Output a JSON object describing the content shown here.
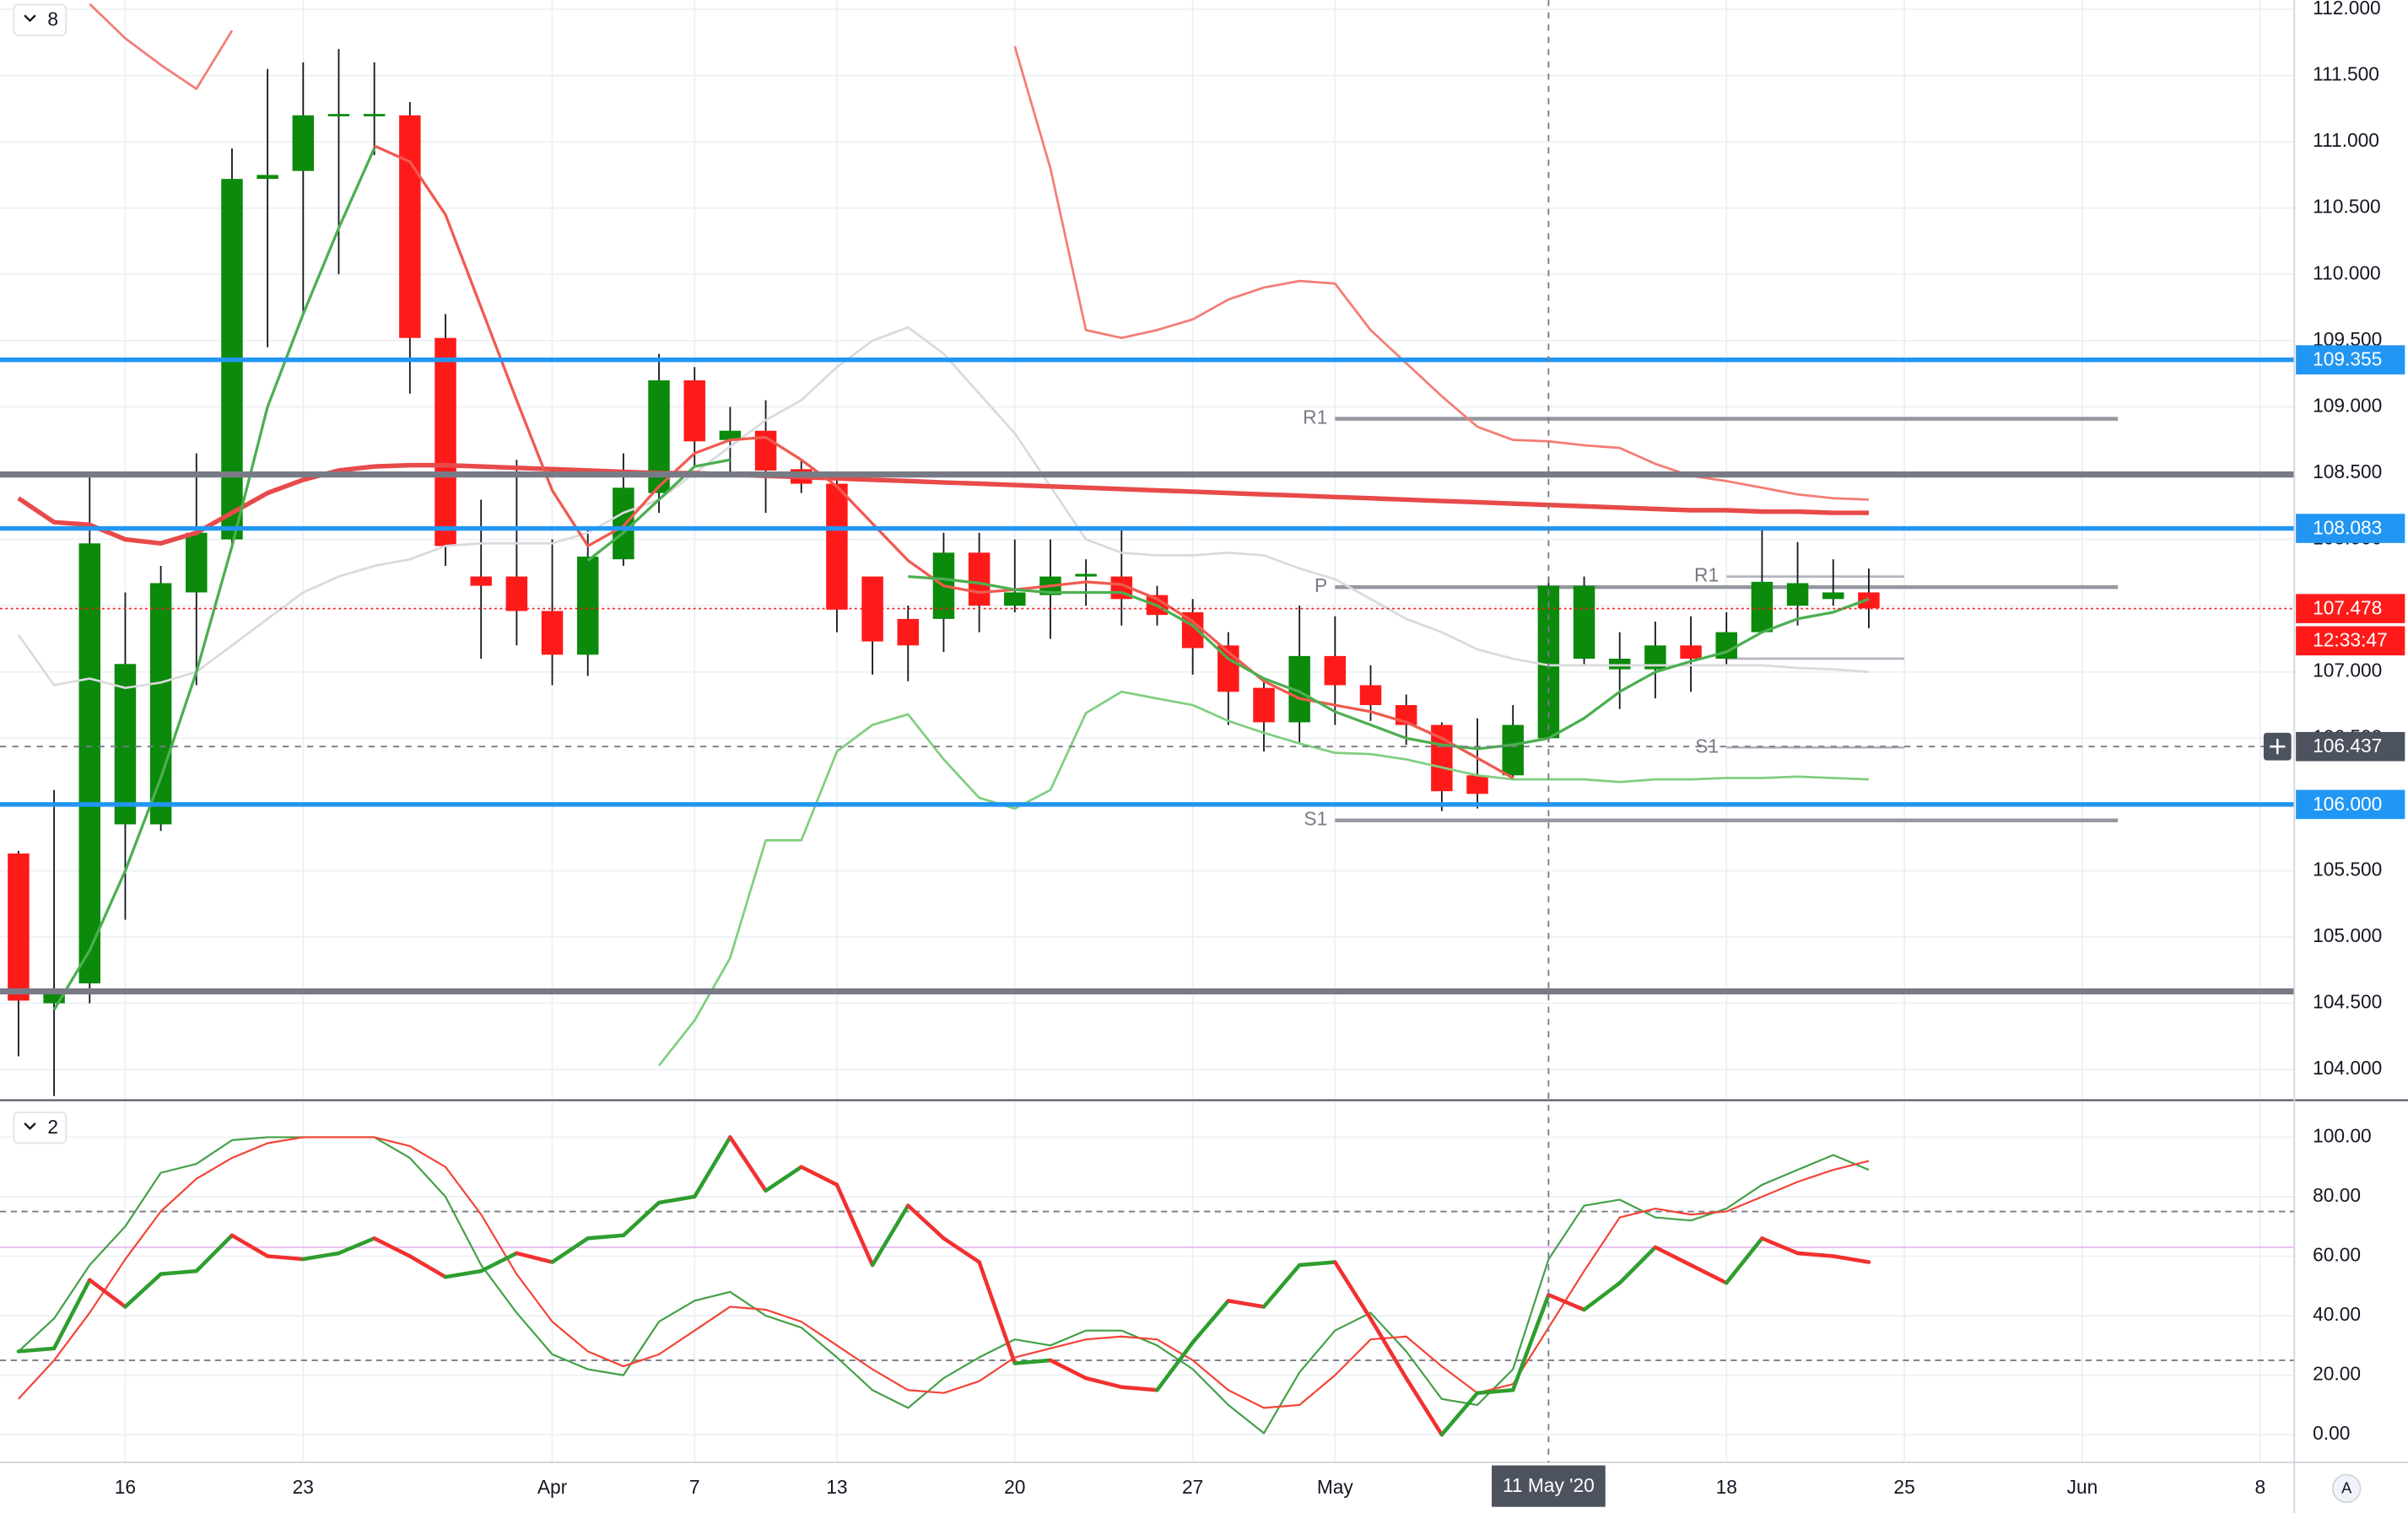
{
  "chart_data": [
    {
      "type": "candlestick",
      "legend_badge": "8",
      "grid": true,
      "xlim": [
        -0.52,
        63.96
      ],
      "ylim": [
        103.78,
        112.07
      ],
      "yticks": [
        {
          "value": 104.0,
          "label": "104.000"
        },
        {
          "value": 104.5,
          "label": "104.500"
        },
        {
          "value": 105.0,
          "label": "105.000"
        },
        {
          "value": 105.5,
          "label": "105.500"
        },
        {
          "value": 106.0,
          "label": "106.000"
        },
        {
          "value": 106.5,
          "label": "106.500"
        },
        {
          "value": 107.0,
          "label": "107.000"
        },
        {
          "value": 107.5,
          "label": "107.500"
        },
        {
          "value": 108.0,
          "label": "108.000"
        },
        {
          "value": 108.5,
          "label": "108.500"
        },
        {
          "value": 109.0,
          "label": "109.000"
        },
        {
          "value": 109.5,
          "label": "109.500"
        },
        {
          "value": 110.0,
          "label": "110.000"
        },
        {
          "value": 110.5,
          "label": "110.500"
        },
        {
          "value": 111.0,
          "label": "111.000"
        },
        {
          "value": 111.5,
          "label": "111.500"
        },
        {
          "value": 112.0,
          "label": "112.000"
        }
      ],
      "candles": {
        "up_color": "#0b8a0b",
        "down_color": "#ff1a1a",
        "open": [
          105.63,
          104.5,
          104.65,
          105.85,
          105.85,
          107.6,
          108.0,
          110.72,
          110.78,
          111.2,
          111.2,
          111.2,
          109.52,
          107.72,
          107.72,
          107.46,
          107.13,
          107.85,
          108.35,
          109.2,
          108.75,
          108.82,
          108.53,
          108.42,
          107.72,
          107.4,
          107.4,
          107.9,
          107.5,
          107.58,
          107.72,
          107.72,
          107.58,
          107.45,
          107.2,
          106.88,
          106.62,
          107.12,
          106.9,
          106.75,
          106.6,
          106.22,
          106.22,
          106.5,
          107.1,
          107.02,
          107.02,
          107.2,
          107.1,
          107.3,
          107.5,
          107.55,
          107.6
        ],
        "high": [
          105.65,
          106.11,
          108.5,
          107.6,
          107.8,
          108.65,
          110.95,
          111.55,
          111.6,
          111.7,
          111.6,
          111.3,
          109.7,
          108.3,
          108.6,
          108.0,
          108.1,
          108.65,
          109.4,
          109.3,
          109.0,
          109.05,
          108.6,
          108.5,
          107.72,
          107.5,
          108.05,
          108.05,
          108.0,
          108.0,
          107.85,
          108.07,
          107.65,
          107.55,
          107.3,
          106.95,
          107.5,
          107.42,
          107.05,
          106.83,
          106.62,
          106.65,
          106.75,
          107.72,
          107.72,
          107.3,
          107.38,
          107.42,
          107.45,
          108.07,
          107.98,
          107.85,
          107.78
        ],
        "low": [
          104.1,
          103.8,
          104.5,
          105.13,
          105.8,
          106.9,
          107.95,
          109.45,
          109.7,
          110.0,
          110.9,
          109.1,
          107.8,
          107.1,
          107.2,
          106.9,
          106.97,
          107.8,
          108.2,
          108.55,
          108.5,
          108.2,
          108.35,
          107.3,
          106.98,
          106.93,
          107.15,
          107.3,
          107.45,
          107.25,
          107.5,
          107.35,
          107.35,
          106.98,
          106.6,
          106.4,
          106.47,
          106.6,
          106.63,
          106.45,
          105.95,
          105.97,
          106.2,
          106.47,
          107.05,
          106.72,
          106.8,
          106.85,
          107.05,
          107.3,
          107.35,
          107.5,
          107.33
        ],
        "close": [
          104.52,
          104.6,
          107.97,
          107.06,
          107.67,
          108.05,
          110.72,
          110.75,
          111.2,
          111.21,
          111.21,
          109.52,
          107.95,
          107.65,
          107.46,
          107.13,
          107.87,
          108.39,
          109.2,
          108.74,
          108.82,
          108.52,
          108.42,
          107.47,
          107.23,
          107.2,
          107.9,
          107.5,
          107.6,
          107.72,
          107.74,
          107.55,
          107.43,
          107.18,
          106.85,
          106.62,
          107.12,
          106.9,
          106.75,
          106.6,
          106.1,
          106.08,
          106.6,
          107.65,
          107.65,
          107.1,
          107.2,
          107.1,
          107.3,
          107.68,
          107.67,
          107.6,
          107.48
        ]
      },
      "series": [
        {
          "color": "#d9dadd",
          "width": 1.5,
          "values": [
            107.28,
            106.9,
            106.95,
            106.88,
            106.92,
            107.0,
            107.2,
            107.4,
            107.6,
            107.72,
            107.8,
            107.85,
            107.95,
            107.97,
            107.97,
            107.97,
            108.05,
            108.2,
            108.3,
            108.5,
            108.7,
            108.9,
            109.05,
            109.3,
            109.5,
            109.6,
            109.4,
            109.1,
            108.8,
            108.4,
            108.0,
            107.9,
            107.88,
            107.88,
            107.9,
            107.88,
            107.78,
            107.7,
            107.55,
            107.4,
            107.3,
            107.17,
            107.1,
            107.05,
            107.05,
            107.05,
            107.05,
            107.05,
            107.05,
            107.05,
            107.03,
            107.02,
            107.0
          ]
        },
        {
          "color": "#f47c74",
          "width": 1.5,
          "values": [
            null,
            null,
            112.04,
            111.78,
            111.58,
            111.4,
            111.84,
            null,
            null,
            null,
            null,
            null,
            null,
            null,
            null,
            null,
            null,
            null,
            null,
            null,
            null,
            null,
            null,
            null,
            null,
            null,
            null,
            null,
            111.72,
            110.8,
            109.58,
            109.52,
            109.58,
            109.66,
            109.81,
            109.9,
            109.95,
            109.93,
            109.58,
            109.33,
            109.08,
            108.85,
            108.75,
            108.74,
            108.71,
            108.69,
            108.57,
            108.48,
            108.44,
            108.39,
            108.34,
            108.31,
            108.3
          ]
        },
        {
          "color": "#7fcf7f",
          "width": 1.5,
          "values": [
            null,
            null,
            null,
            null,
            null,
            null,
            null,
            null,
            null,
            null,
            null,
            null,
            null,
            null,
            null,
            null,
            null,
            null,
            104.03,
            104.37,
            104.84,
            105.73,
            105.73,
            106.4,
            106.6,
            106.68,
            106.34,
            106.05,
            105.97,
            106.11,
            106.69,
            106.85,
            106.8,
            106.75,
            106.63,
            106.54,
            106.46,
            106.39,
            106.38,
            106.34,
            106.28,
            106.22,
            106.19,
            106.19,
            106.19,
            106.17,
            106.19,
            106.19,
            106.2,
            106.2,
            106.21,
            106.2,
            106.19
          ]
        },
        {
          "color": "#e84a4a",
          "width": 3,
          "values": [
            108.31,
            108.13,
            108.11,
            108.0,
            107.97,
            108.05,
            108.2,
            108.35,
            108.45,
            108.52,
            108.55,
            108.56,
            108.56,
            108.55,
            108.54,
            108.53,
            108.52,
            108.51,
            108.5,
            108.5,
            108.49,
            108.48,
            108.47,
            108.46,
            108.45,
            108.44,
            108.43,
            108.42,
            108.41,
            108.4,
            108.39,
            108.38,
            108.37,
            108.36,
            108.35,
            108.34,
            108.33,
            108.32,
            108.31,
            108.3,
            108.29,
            108.28,
            108.27,
            108.26,
            108.25,
            108.24,
            108.23,
            108.22,
            108.22,
            108.21,
            108.21,
            108.2,
            108.2
          ]
        },
        {
          "color": "#f05a50",
          "width": 1.8,
          "values": [
            null,
            null,
            null,
            null,
            null,
            null,
            null,
            null,
            null,
            null,
            110.97,
            110.85,
            110.45,
            109.75,
            109.05,
            108.37,
            107.95,
            108.1,
            108.4,
            108.65,
            108.75,
            108.77,
            108.6,
            108.4,
            108.12,
            107.84,
            107.65,
            107.6,
            107.62,
            107.65,
            107.68,
            107.66,
            107.55,
            107.38,
            107.15,
            106.93,
            106.8,
            106.75,
            106.7,
            106.62,
            106.5,
            106.35,
            106.2,
            null,
            null,
            null,
            null,
            null,
            null,
            null,
            null,
            null,
            null
          ]
        },
        {
          "color": "#4caf50",
          "width": 1.8,
          "values": [
            null,
            104.45,
            104.9,
            105.5,
            106.2,
            107.0,
            107.95,
            109.0,
            109.7,
            110.35,
            110.95,
            null,
            null,
            null,
            null,
            null,
            107.84,
            108.05,
            108.3,
            108.55,
            108.6,
            null,
            null,
            null,
            null,
            107.72,
            107.7,
            107.67,
            107.62,
            107.6,
            107.6,
            107.6,
            107.5,
            107.35,
            107.1,
            106.95,
            106.85,
            106.7,
            106.6,
            106.5,
            106.45,
            106.42,
            106.45,
            106.5,
            106.65,
            106.85,
            107.0,
            107.08,
            107.15,
            107.3,
            107.4,
            107.45,
            107.55
          ]
        }
      ],
      "pivots": [
        {
          "label": "R1",
          "value": 108.91,
          "from": 37,
          "to": 59,
          "color": "#9598a1",
          "width": 2.5
        },
        {
          "label": "P",
          "value": 107.64,
          "from": 37,
          "to": 59,
          "color": "#9598a1",
          "width": 2.5
        },
        {
          "label": "S1",
          "value": 105.88,
          "from": 37,
          "to": 59,
          "color": "#9598a1",
          "width": 2.5
        },
        {
          "label": "R1",
          "value": 107.72,
          "from": 48,
          "to": 53,
          "color": "#b2b5be",
          "width": 1.5
        },
        {
          "value": 107.1,
          "from": 48,
          "to": 53,
          "color": "#b2b5be",
          "width": 1.5
        },
        {
          "label": "S1",
          "value": 106.43,
          "from": 48,
          "to": 53,
          "color": "#b2b5be",
          "width": 1.5
        }
      ],
      "levels": [
        {
          "value": 108.49,
          "color": "#787b86",
          "width": 4
        },
        {
          "value": 104.59,
          "color": "#787b86",
          "width": 4
        },
        {
          "value": 109.355,
          "label": "109.355",
          "color": "#2196f3",
          "width": 3
        },
        {
          "value": 108.083,
          "label": "108.083",
          "color": "#2196f3",
          "width": 3
        },
        {
          "value": 106.0,
          "label": "106.000",
          "color": "#2196f3",
          "width": 3
        }
      ],
      "last_price": {
        "value": 107.478,
        "label": "107.478",
        "countdown": "12:33:47",
        "color": "#ff1a1a"
      },
      "crosshair": {
        "y": {
          "value": 106.437,
          "label": "106.437"
        },
        "x": {
          "value": 43,
          "label": "11 May '20"
        }
      }
    },
    {
      "type": "line",
      "legend_badge": "2",
      "grid": true,
      "xlim": [
        -0.52,
        63.96
      ],
      "ylim": [
        -9.3,
        111.9
      ],
      "yticks": [
        {
          "value": 0,
          "label": "0.00"
        },
        {
          "value": 20,
          "label": "20.00"
        },
        {
          "value": 40,
          "label": "40.00"
        },
        {
          "value": 60,
          "label": "60.00"
        },
        {
          "value": 80,
          "label": "80.00"
        },
        {
          "value": 100,
          "label": "100.00"
        }
      ],
      "xticks": [
        {
          "value": 3,
          "label": "16"
        },
        {
          "value": 8,
          "label": "23"
        },
        {
          "value": 15,
          "label": "Apr"
        },
        {
          "value": 19,
          "label": "7"
        },
        {
          "value": 23,
          "label": "13"
        },
        {
          "value": 28,
          "label": "20"
        },
        {
          "value": 33,
          "label": "27"
        },
        {
          "value": 37,
          "label": "May"
        },
        {
          "value": 48,
          "label": "18"
        },
        {
          "value": 53,
          "label": "25"
        },
        {
          "value": 58,
          "label": "Jun"
        },
        {
          "value": 63,
          "label": "8"
        }
      ],
      "levels": [
        {
          "value": 75,
          "color": "#787b86",
          "dash": true
        },
        {
          "value": 25,
          "color": "#787b86",
          "dash": true
        },
        {
          "value": 63,
          "color": "#e8b8ef",
          "dash": false
        }
      ],
      "series": [
        {
          "color": "#43a047",
          "width": 1.2,
          "values": [
            28,
            39,
            57,
            70,
            88,
            91,
            99,
            100,
            100,
            100,
            100,
            93,
            80,
            57,
            41,
            27,
            22,
            20,
            38,
            45,
            48,
            40,
            36,
            26,
            15,
            9,
            19,
            26,
            32,
            30,
            35,
            35,
            30,
            22,
            10,
            0.5,
            21,
            35,
            41,
            28,
            12,
            10,
            22,
            59,
            77,
            79,
            73,
            72,
            76,
            84,
            89,
            94,
            89
          ]
        },
        {
          "color": "#f44336",
          "width": 1.2,
          "values": [
            12,
            25,
            41,
            59,
            75,
            86,
            93,
            98,
            100,
            100,
            100,
            97,
            90,
            74,
            54,
            38,
            28,
            23,
            27,
            35,
            43,
            42,
            38,
            30,
            22,
            15,
            14,
            18,
            26,
            29,
            32,
            33,
            32,
            25,
            15,
            9,
            10,
            20,
            32,
            33,
            23,
            14,
            17,
            36,
            55,
            73,
            76,
            74,
            75,
            80,
            85,
            89,
            92
          ]
        }
      ],
      "oscillator": {
        "up_color": "#2e9e2e",
        "down_color": "#f23030",
        "width": 2.5,
        "values": [
          28,
          29,
          52,
          43,
          54,
          55,
          67,
          60,
          59,
          61,
          66,
          60,
          53,
          55,
          61,
          58,
          66,
          67,
          78,
          80,
          100,
          82,
          90,
          84,
          57,
          77,
          66,
          58,
          24,
          25,
          19,
          16,
          15,
          31,
          45,
          43,
          57,
          58,
          39,
          19,
          0,
          14,
          15,
          47,
          42,
          51,
          63,
          57,
          51,
          66,
          61,
          60,
          58
        ]
      }
    }
  ],
  "auto_scale_button": "A"
}
